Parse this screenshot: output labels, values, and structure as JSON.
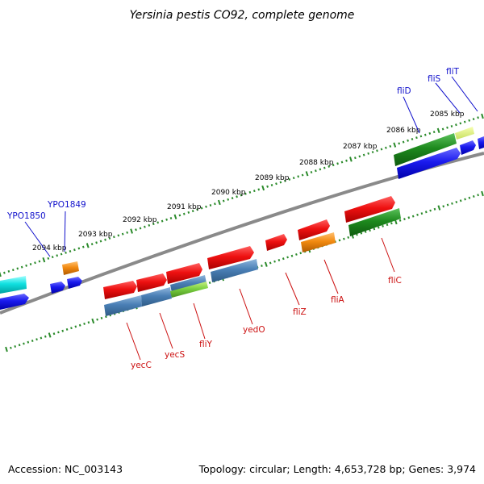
{
  "title": "Yersinia pestis CO92, complete genome",
  "footer": {
    "accession": "Accession: NC_003143",
    "summary": "Topology: circular; Length: 4,653,728 bp; Genes: 3,974"
  },
  "ticks": [
    "2094 kbp",
    "2093 kbp",
    "2092 kbp",
    "2091 kbp",
    "2090 kbp",
    "2089 kbp",
    "2088 kbp",
    "2087 kbp",
    "2086 kbp",
    "2085 kbp"
  ],
  "labels_top": [
    "YPO1850",
    "YPO1849",
    "fliD",
    "fliS",
    "fliT"
  ],
  "labels_bottom": [
    "yecC",
    "yecS",
    "fliY",
    "yedO",
    "fliZ",
    "fliA",
    "fliC"
  ],
  "colors": {
    "label_top": "#1010cc",
    "label_bottom": "#cc1010",
    "backbone": "#8a8a8a",
    "dots": "#2a8a2a",
    "red": "#ee1111",
    "blue": "#1a1aee",
    "steel": "#4a7fb5",
    "green": "#1e8a1e",
    "orange": "#f28a10",
    "cyan": "#10e0e0",
    "lime": "#7ad040"
  }
}
